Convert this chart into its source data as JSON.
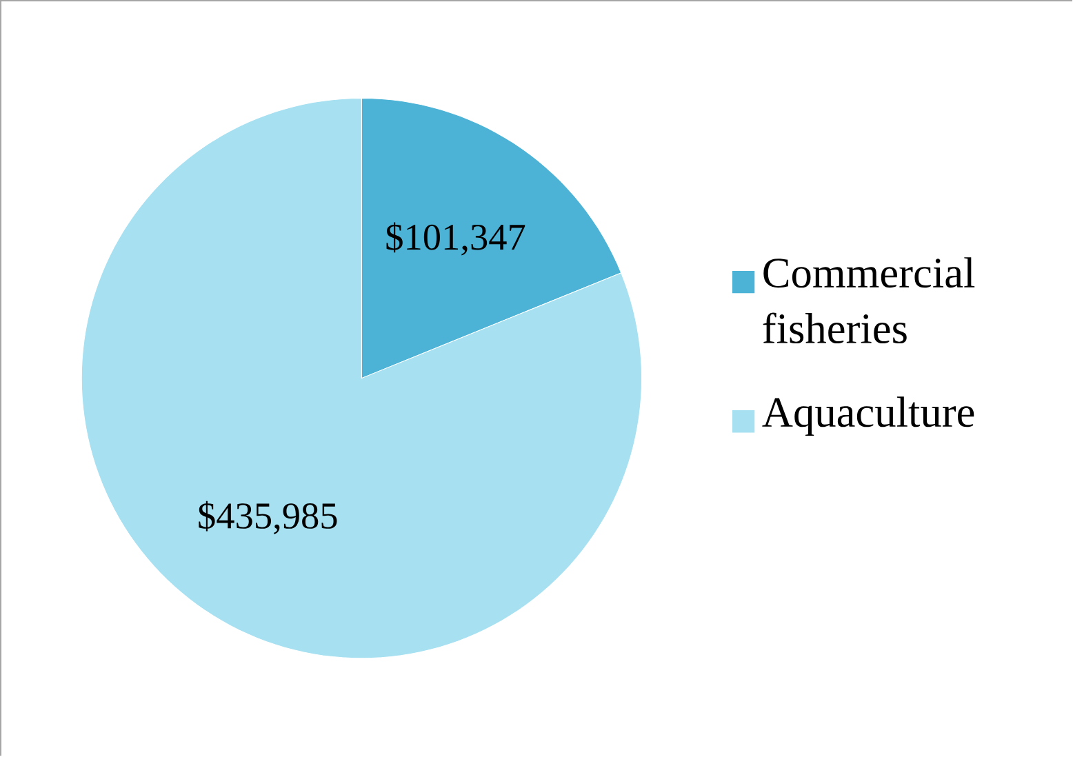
{
  "chart_data": {
    "type": "pie",
    "categories": [
      "Commercial fisheries",
      "Aquaculture"
    ],
    "values": [
      101347,
      435985
    ],
    "colors": [
      "#4db3d6",
      "#a6e0f1"
    ],
    "value_labels": [
      "$101,347",
      "$435,985"
    ],
    "legend": "right"
  }
}
